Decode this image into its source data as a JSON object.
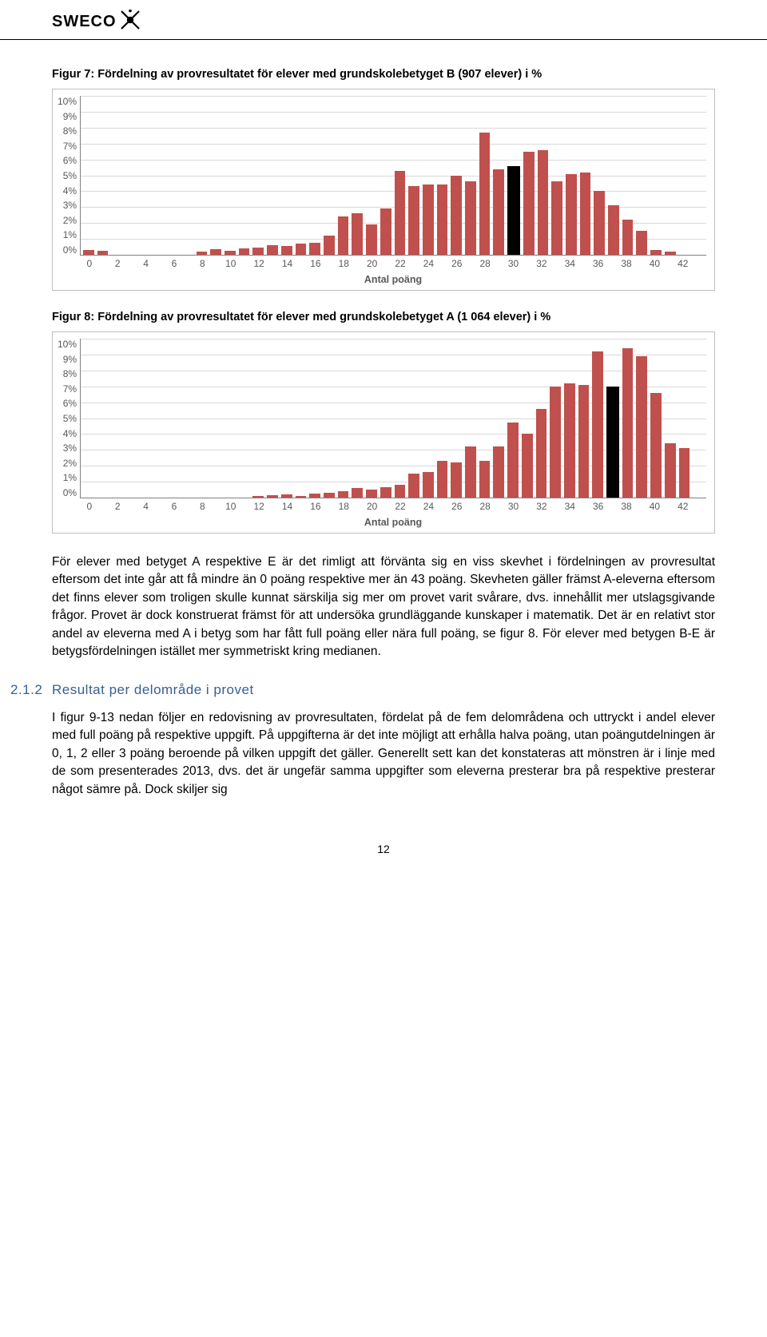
{
  "header": {
    "brand": "SWECO"
  },
  "chart1": {
    "title": "Figur 7: Fördelning av provresultatet för elever med grundskolebetyget B (907 elever) i %",
    "type": "bar",
    "bar_color": "#c0504d",
    "marker_color": "#000000",
    "grid_color": "#d9d9d9",
    "axis_color": "#808080",
    "border_color": "#bfbfbf",
    "background_color": "#ffffff",
    "tick_color": "#595959",
    "tick_fontsize": 12,
    "xlabel": "Antal poäng",
    "xlabel_fontsize": 12.5,
    "ylim": [
      0,
      10
    ],
    "ytick_step": 1,
    "y_ticks": [
      "10%",
      "9%",
      "8%",
      "7%",
      "6%",
      "5%",
      "4%",
      "3%",
      "2%",
      "1%",
      "0%"
    ],
    "x_ticks": [
      "0",
      "2",
      "4",
      "6",
      "8",
      "10",
      "12",
      "14",
      "16",
      "18",
      "20",
      "22",
      "24",
      "26",
      "28",
      "30",
      "32",
      "34",
      "36",
      "38",
      "40",
      "42"
    ],
    "marker_index": 30,
    "values": [
      0.3,
      0.25,
      0,
      0,
      0,
      0,
      0,
      0,
      0.2,
      0.35,
      0.25,
      0.4,
      0.45,
      0.6,
      0.55,
      0.7,
      0.75,
      1.2,
      2.4,
      2.6,
      1.9,
      2.9,
      5.3,
      4.3,
      4.4,
      4.4,
      5.0,
      4.6,
      7.7,
      5.4,
      5.6,
      6.5,
      6.6,
      4.6,
      5.1,
      5.2,
      4.0,
      3.1,
      2.2,
      1.5,
      0.3,
      0.2,
      0,
      0
    ]
  },
  "chart2": {
    "title": "Figur 8: Fördelning av provresultatet för elever med grundskolebetyget A (1 064 elever) i %",
    "type": "bar",
    "bar_color": "#c0504d",
    "marker_color": "#000000",
    "grid_color": "#d9d9d9",
    "axis_color": "#808080",
    "border_color": "#bfbfbf",
    "background_color": "#ffffff",
    "tick_color": "#595959",
    "tick_fontsize": 12,
    "xlabel": "Antal poäng",
    "xlabel_fontsize": 12.5,
    "ylim": [
      0,
      10
    ],
    "ytick_step": 1,
    "y_ticks": [
      "10%",
      "9%",
      "8%",
      "7%",
      "6%",
      "5%",
      "4%",
      "3%",
      "2%",
      "1%",
      "0%"
    ],
    "x_ticks": [
      "0",
      "2",
      "4",
      "6",
      "8",
      "10",
      "12",
      "14",
      "16",
      "18",
      "20",
      "22",
      "24",
      "26",
      "28",
      "30",
      "32",
      "34",
      "36",
      "38",
      "40",
      "42"
    ],
    "marker_index": 37,
    "values": [
      0,
      0,
      0,
      0,
      0,
      0,
      0,
      0,
      0,
      0,
      0,
      0,
      0.1,
      0.15,
      0.2,
      0.1,
      0.25,
      0.3,
      0.4,
      0.6,
      0.5,
      0.65,
      0.8,
      1.5,
      1.6,
      2.3,
      2.2,
      3.2,
      2.3,
      3.2,
      4.7,
      4.0,
      5.6,
      7.0,
      7.2,
      7.1,
      9.2,
      7.0,
      9.4,
      8.9,
      6.6,
      3.4,
      3.1,
      0
    ]
  },
  "paragraph1": "För elever med betyget A respektive E är det rimligt att förvänta sig en viss skevhet i fördelningen av provresultat eftersom det inte går att få mindre än 0 poäng respektive mer än 43 poäng. Skevheten gäller främst A-eleverna eftersom det finns elever som troligen skulle kunnat särskilja sig mer om provet varit svårare, dvs. innehållit mer utslagsgivande frågor. Provet är dock konstruerat främst för att undersöka grundläggande kunskaper i matematik. Det är en relativt stor andel av eleverna med A i betyg som har fått full poäng eller nära full poäng, se figur 8. För elever med betygen B-E är betygsfördelningen istället mer symmetriskt kring medianen.",
  "section": {
    "number": "2.1.2",
    "title": "Resultat per delområde i provet"
  },
  "paragraph2": "I figur 9-13 nedan följer en redovisning av provresultaten, fördelat på de fem delområdena och uttryckt i andel elever med full poäng på respektive uppgift. På uppgifterna är det inte möjligt att erhålla halva poäng, utan poängutdelningen är 0, 1, 2 eller 3 poäng beroende på vilken uppgift det gäller. Generellt sett kan det konstateras att mönstren är i linje med de som presenterades 2013, dvs. det är ungefär samma uppgifter som eleverna presterar bra på respektive presterar något sämre på. Dock skiljer sig",
  "page_number": "12"
}
